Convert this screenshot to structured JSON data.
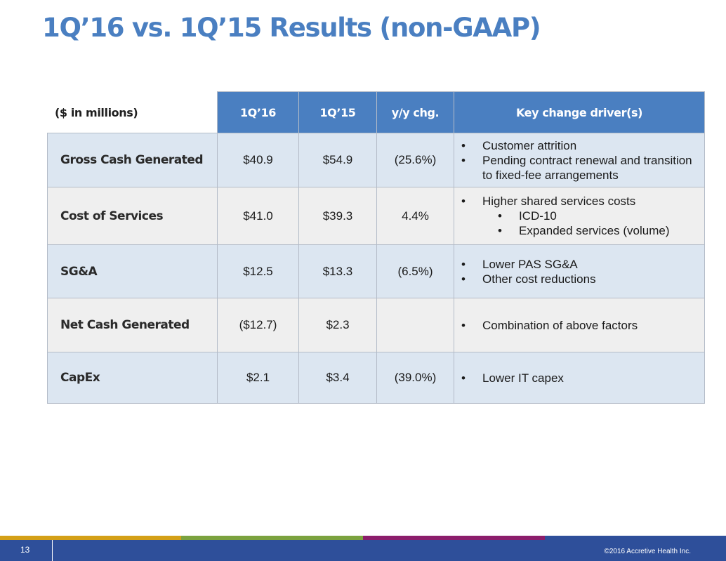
{
  "slide": {
    "title": "1Q’16 vs. 1Q’15 Results (non-GAAP)",
    "page_number": "13",
    "copyright": "©2016 Accretive Health Inc."
  },
  "table": {
    "headers": {
      "units": "($ in millions)",
      "q16": "1Q’16",
      "q15": "1Q’15",
      "yy": "y/y chg.",
      "drivers": "Key change driver(s)"
    },
    "rows": [
      {
        "label": "Gross Cash Generated",
        "q16": "$40.9",
        "q15": "$54.9",
        "yy": "(25.6%)",
        "drivers": [
          "Customer attrition",
          "Pending contract renewal and transition to fixed-fee arrangements"
        ]
      },
      {
        "label": "Cost of Services",
        "q16": "$41.0",
        "q15": "$39.3",
        "yy": "4.4%",
        "drivers": [
          "Higher shared services costs"
        ],
        "sub_drivers": [
          "ICD-10",
          "Expanded services (volume)"
        ]
      },
      {
        "label": "SG&A",
        "q16": "$12.5",
        "q15": "$13.3",
        "yy": "(6.5%)",
        "drivers": [
          "Lower PAS SG&A",
          "Other cost reductions"
        ]
      },
      {
        "label": "Net Cash Generated",
        "q16": "($12.7)",
        "q15": "$2.3",
        "yy": "",
        "drivers": [
          "Combination of above factors"
        ]
      },
      {
        "label": "CapEx",
        "q16": "$2.1",
        "q15": "$3.4",
        "yy": "(39.0%)",
        "drivers": [
          "Lower IT capex"
        ]
      }
    ]
  },
  "colors": {
    "title": "#4a7fc1",
    "header_fill": "#4a7fc1",
    "row_blue": "#dce6f1",
    "row_gray": "#efefef",
    "footer_bar": "#2e4f9a",
    "stripe": [
      "#d4a017",
      "#7ba23f",
      "#8b1d6b",
      "#2e4f9a"
    ]
  }
}
